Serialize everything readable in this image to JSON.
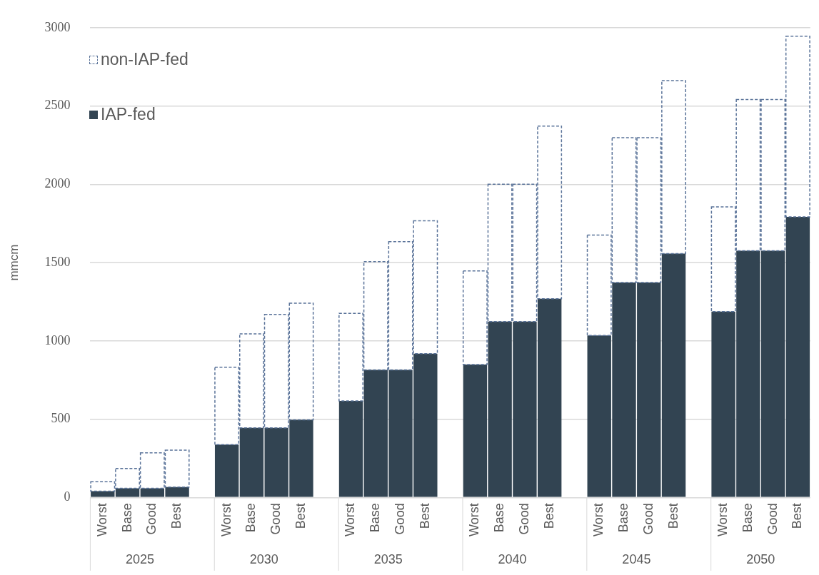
{
  "chart_data": {
    "type": "bar",
    "stacked": true,
    "ylabel": "mmcm",
    "categories": [
      "Worst",
      "Base",
      "Good",
      "Best",
      null,
      "Worst",
      "Base",
      "Good",
      "Best",
      null,
      "Worst",
      "Base",
      "Good",
      "Best",
      null,
      "Worst",
      "Base",
      "Good",
      "Best",
      null,
      "Worst",
      "Base",
      "Good",
      "Best",
      null,
      "Worst",
      "Base",
      "Good",
      "Best"
    ],
    "series": [
      {
        "name": "IAP-fed",
        "color": "#324452",
        "values": [
          40,
          59,
          59,
          66,
          null,
          337,
          444,
          444,
          496,
          null,
          617,
          815,
          815,
          918,
          null,
          849,
          1123,
          1123,
          1269,
          null,
          1034,
          1373,
          1373,
          1557,
          null,
          1187,
          1575,
          1575,
          1792
        ]
      },
      {
        "name": "non-IAP-fed",
        "color": "#5a7399",
        "line_style": "dashed",
        "values": [
          61,
          126,
          226,
          236,
          null,
          495,
          601,
          725,
          745,
          null,
          559,
          691,
          819,
          849,
          null,
          598,
          877,
          877,
          1103,
          null,
          642,
          924,
          924,
          1105,
          null,
          669,
          966,
          966,
          1153
        ]
      }
    ],
    "ylim": [
      0,
      3000
    ],
    "yticks": [
      0,
      500,
      1000,
      1500,
      2000,
      2500,
      3000
    ],
    "grid": "y",
    "legend": "top left",
    "annotations": [
      "2025",
      "2030",
      "2035",
      "2040",
      "2045",
      "2050"
    ]
  }
}
